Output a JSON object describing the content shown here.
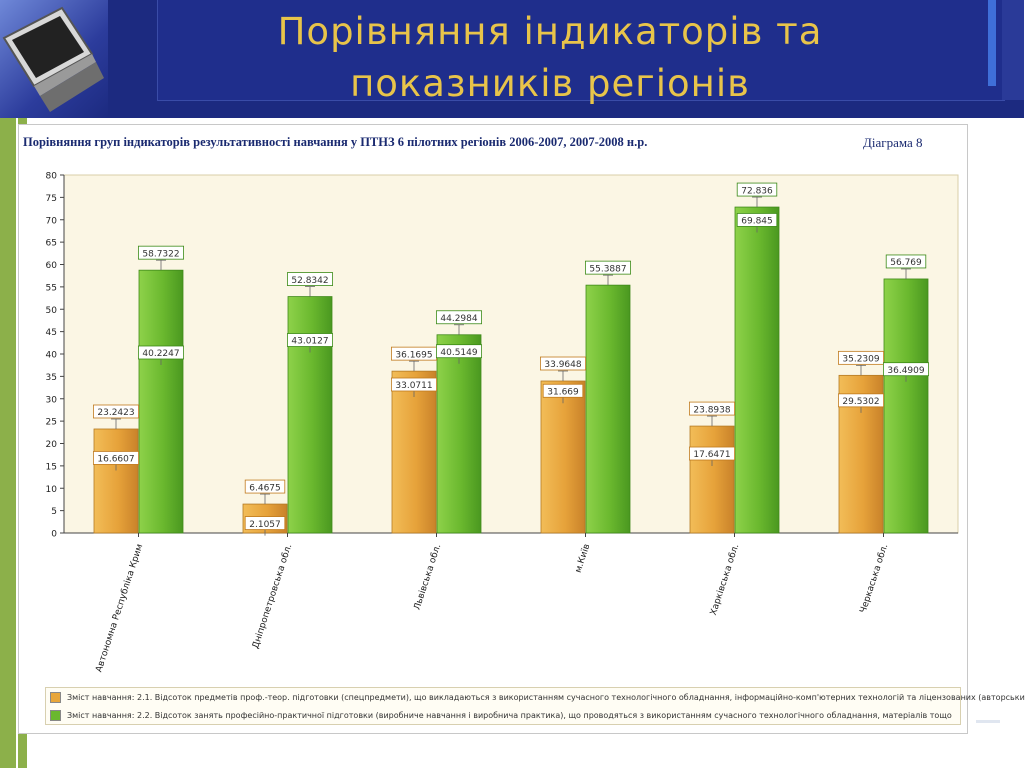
{
  "slide": {
    "title_line1": "Порівняння індикаторів та",
    "title_line2": "показників регіонів"
  },
  "chart_data": {
    "type": "bar",
    "title": "Порівняння груп  індикаторів результативності навчання  у  ПТНЗ 6 пілотних регіонів 2006-2007, 2007-2008 н.р.",
    "diagram_label": "Діаграма  8",
    "categories": [
      "Автономна Республіка Крим",
      "Дніпропетровська обл.",
      "Львівська обл.",
      "м.Київ",
      "Харківська обл.",
      "Черкаська обл."
    ],
    "ylim": [
      0,
      80
    ],
    "yticks": [
      0,
      5,
      10,
      15,
      20,
      25,
      30,
      35,
      40,
      45,
      50,
      55,
      60,
      65,
      70,
      75,
      80
    ],
    "series": [
      {
        "name": "Зміст навчання: 2.1. Відсоток предметів проф.-теор. підготовки (спецпредмети), що викладаються з використанням сучасного технологічного обладнання, інформаційно-комп'ютерних технологій та ліцензованих (авторськи",
        "color": "#e8a63a",
        "values": [
          23.2423,
          6.4675,
          36.1695,
          33.9648,
          23.8938,
          35.2309
        ],
        "values_label": [
          "23.2423",
          "6.4675",
          "36.1695",
          "33.9648",
          "23.8938",
          "35.2309"
        ],
        "inner_values": [
          16.6607,
          2.1057,
          33.0711,
          31.669,
          17.6471,
          29.5302
        ],
        "inner_label": [
          "16.6607",
          "2.1057",
          "33.0711",
          "31.669",
          "17.6471",
          "29.5302"
        ]
      },
      {
        "name": "Зміст навчання: 2.2. Відсоток занять професійно-практичної підготовки (виробниче навчання і виробнича практика), що проводяться з використанням сучасного технологічного обладнання, матеріалів тощо",
        "color": "#6ab82e",
        "values": [
          58.7322,
          52.8342,
          44.2984,
          55.3887,
          72.836,
          56.769
        ],
        "values_label": [
          "58.7322",
          "52.8342",
          "44.2984",
          "55.3887",
          "72.836",
          "56.769"
        ],
        "inner_values": [
          40.2247,
          43.0127,
          40.5149,
          null,
          69.845,
          36.4909
        ],
        "inner_label": [
          "40.2247",
          "43.0127",
          "40.5149",
          "",
          "69.845",
          "36.4909"
        ]
      }
    ],
    "legend_position": "bottom",
    "grid": false
  }
}
